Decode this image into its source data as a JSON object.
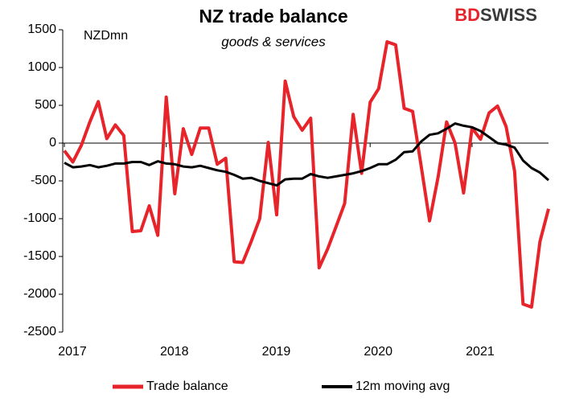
{
  "brand": {
    "part1": "BD",
    "part2": "SWISS"
  },
  "chart_data": {
    "type": "line",
    "title": "NZ trade balance",
    "subtitle": "goods & services",
    "y_label": "NZDmn",
    "categories": [
      "2017",
      null,
      null,
      null,
      null,
      null,
      null,
      null,
      null,
      null,
      null,
      null,
      "2018",
      null,
      null,
      null,
      null,
      null,
      null,
      null,
      null,
      null,
      null,
      null,
      "2019",
      null,
      null,
      null,
      null,
      null,
      null,
      null,
      null,
      null,
      null,
      null,
      "2020",
      null,
      null,
      null,
      null,
      null,
      null,
      null,
      null,
      null,
      null,
      null,
      "2021",
      null,
      null,
      null,
      null,
      null,
      null,
      null,
      null,
      null
    ],
    "series": [
      {
        "name": "Trade balance",
        "color": "#e8242b",
        "values": [
          -100,
          -250,
          -30,
          280,
          550,
          60,
          240,
          100,
          -1170,
          -1160,
          -830,
          -1220,
          610,
          -670,
          190,
          -150,
          200,
          200,
          -280,
          -200,
          -1570,
          -1580,
          -1300,
          -1000,
          10,
          -950,
          820,
          350,
          170,
          330,
          -1650,
          -1400,
          -1100,
          -800,
          380,
          -400,
          540,
          720,
          1340,
          1300,
          460,
          420,
          -300,
          -1030,
          -450,
          280,
          0,
          -660,
          200,
          50,
          400,
          490,
          220,
          -370,
          -2130,
          -2170,
          -1300,
          -870
        ]
      },
      {
        "name": "12m moving avg",
        "color": "#000000",
        "values": [
          -260,
          -320,
          -310,
          -290,
          -320,
          -300,
          -270,
          -270,
          -250,
          -250,
          -290,
          -240,
          -270,
          -280,
          -310,
          -320,
          -300,
          -330,
          -360,
          -380,
          -420,
          -470,
          -460,
          -500,
          -530,
          -560,
          -480,
          -470,
          -470,
          -410,
          -440,
          -460,
          -440,
          -420,
          -400,
          -370,
          -330,
          -280,
          -280,
          -220,
          -120,
          -110,
          20,
          110,
          130,
          190,
          260,
          230,
          210,
          160,
          80,
          0,
          -20,
          -60,
          -230,
          -330,
          -390,
          -490
        ]
      }
    ],
    "ylim": [
      -2500,
      1500
    ],
    "yticks": [
      -2500,
      -2000,
      -1500,
      -1000,
      -500,
      0,
      500,
      1000,
      1500
    ],
    "grid": false,
    "legend": "bottom"
  }
}
